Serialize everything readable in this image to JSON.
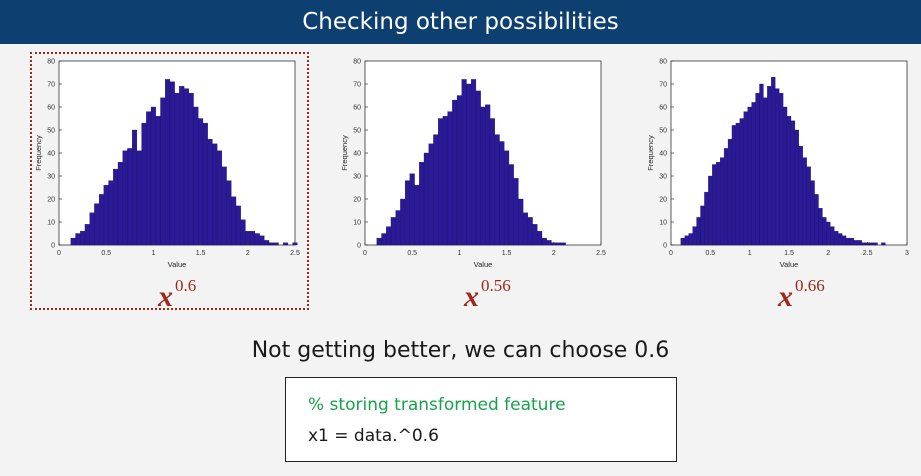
{
  "slide": {
    "title": "Checking other possibilities",
    "conclusion": "Not getting better, we can choose 0.6",
    "code": {
      "comment": "% storing transformed feature",
      "line": "x1 = data.^0.6"
    }
  },
  "colors": {
    "banner": "#0d3f71",
    "bar": "#2a1a96",
    "accent": "#a0281b",
    "comment": "#17a34a"
  },
  "chart_data": [
    {
      "type": "bar",
      "xlabel": "Value",
      "ylabel": "Frequency",
      "xlim": [
        0,
        2.5
      ],
      "ylim": [
        0,
        80
      ],
      "xticks": [
        "0",
        "0.5",
        "1",
        "1.5",
        "2",
        "2.5"
      ],
      "yticks": [
        "0",
        "10",
        "20",
        "30",
        "40",
        "50",
        "60",
        "70",
        "80"
      ],
      "bin_start": 0.125,
      "bin_width": 0.05,
      "values": [
        3,
        5,
        6,
        9,
        14,
        18,
        22,
        26,
        28,
        33,
        36,
        41,
        42,
        50,
        41,
        53,
        58,
        60,
        56,
        64,
        72,
        71,
        66,
        69,
        68,
        66,
        60,
        55,
        53,
        46,
        44,
        41,
        34,
        28,
        21,
        17,
        11,
        6,
        6,
        5,
        4,
        2,
        1,
        1,
        0,
        1,
        0,
        1
      ],
      "exponent_label": "x",
      "exponent": "0.6",
      "highlighted": true
    },
    {
      "type": "bar",
      "xlabel": "Value",
      "ylabel": "Frequency",
      "xlim": [
        0,
        2.5
      ],
      "ylim": [
        0,
        80
      ],
      "xticks": [
        "0",
        "0.5",
        "1",
        "1.5",
        "2",
        "2.5"
      ],
      "yticks": [
        "0",
        "10",
        "20",
        "30",
        "40",
        "50",
        "60",
        "70",
        "80"
      ],
      "bin_start": 0.125,
      "bin_width": 0.05,
      "values": [
        3,
        5,
        8,
        12,
        15,
        20,
        28,
        31,
        26,
        36,
        40,
        44,
        48,
        55,
        56,
        58,
        63,
        65,
        72,
        70,
        72,
        67,
        60,
        61,
        55,
        48,
        45,
        41,
        35,
        29,
        20,
        14,
        12,
        9,
        6,
        3,
        2,
        1,
        1,
        1
      ],
      "exponent_label": "x",
      "exponent": "0.56",
      "highlighted": false
    },
    {
      "type": "bar",
      "xlabel": "Value",
      "ylabel": "Frequency",
      "xlim": [
        0,
        3
      ],
      "ylim": [
        0,
        80
      ],
      "xticks": [
        "0",
        "0.5",
        "1",
        "1.5",
        "2",
        "2.5",
        "3"
      ],
      "yticks": [
        "0",
        "10",
        "20",
        "30",
        "40",
        "50",
        "60",
        "70",
        "80"
      ],
      "bin_start": 0.125,
      "bin_width": 0.05,
      "values": [
        3,
        4,
        5,
        8,
        12,
        17,
        23,
        30,
        35,
        36,
        38,
        42,
        46,
        52,
        53,
        55,
        58,
        60,
        62,
        66,
        70,
        64,
        69,
        73,
        68,
        66,
        60,
        56,
        54,
        50,
        43,
        38,
        34,
        28,
        22,
        16,
        12,
        10,
        8,
        6,
        5,
        4,
        3,
        3,
        2,
        2,
        1,
        1,
        1,
        1,
        0,
        1
      ],
      "exponent_label": "x",
      "exponent": "0.66",
      "highlighted": false
    }
  ]
}
